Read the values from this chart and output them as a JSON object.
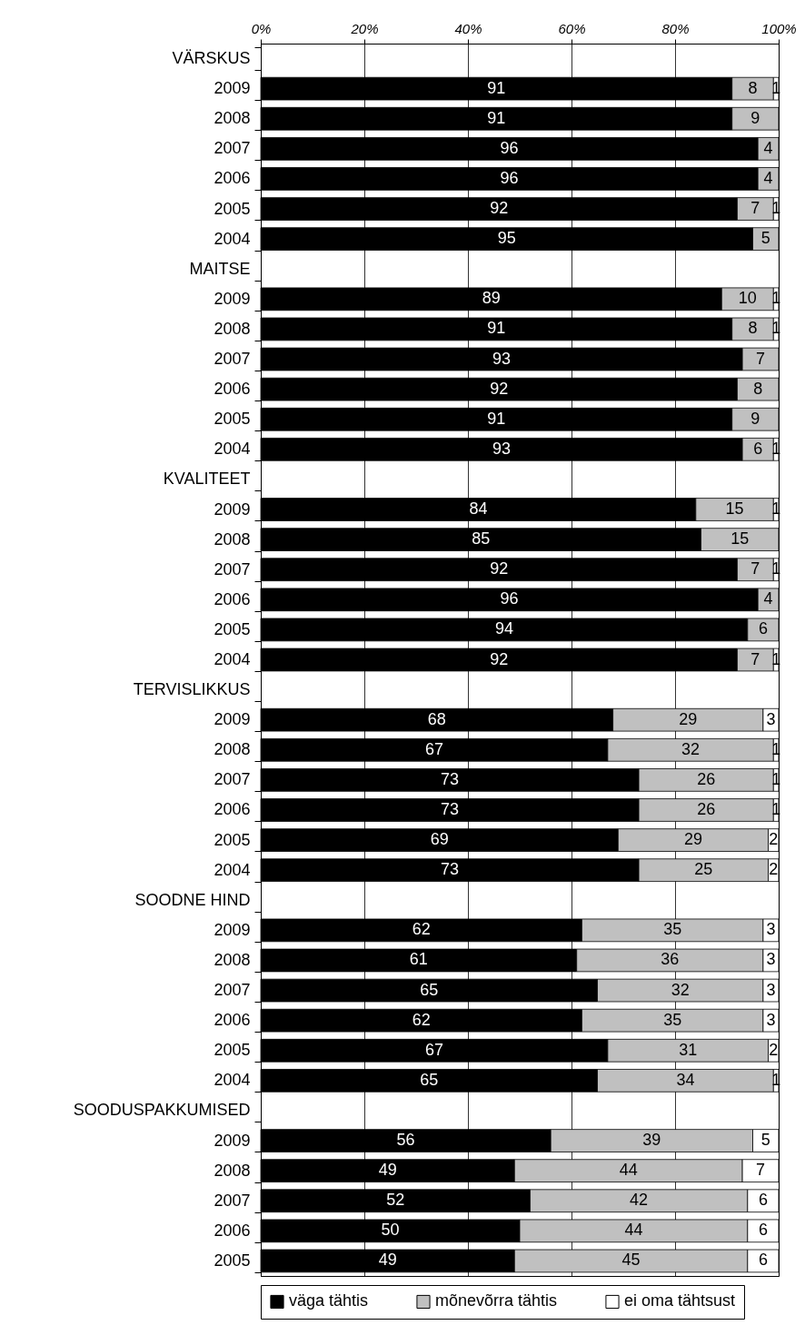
{
  "chart_data": {
    "type": "bar",
    "orientation": "horizontal",
    "stacked": true,
    "categories": [
      "VÄRSKUS",
      "2009",
      "2008",
      "2007",
      "2006",
      "2005",
      "2004",
      "MAITSE",
      "2009",
      "2008",
      "2007",
      "2006",
      "2005",
      "2004",
      "KVALITEET",
      "2009",
      "2008",
      "2007",
      "2006",
      "2005",
      "2004",
      "TERVISLIKKUS",
      "2009",
      "2008",
      "2007",
      "2006",
      "2005",
      "2004",
      "SOODNE HIND",
      "2009",
      "2008",
      "2007",
      "2006",
      "2005",
      "2004",
      "SOODUSPAKKUMISED",
      "2009",
      "2008",
      "2007",
      "2006",
      "2005"
    ],
    "series": [
      {
        "name": "väga tähtis",
        "color": "#000000",
        "values": [
          null,
          91,
          91,
          96,
          96,
          92,
          95,
          null,
          89,
          91,
          93,
          92,
          91,
          93,
          null,
          84,
          85,
          92,
          96,
          94,
          92,
          null,
          68,
          67,
          73,
          73,
          69,
          73,
          null,
          62,
          61,
          65,
          62,
          67,
          65,
          null,
          56,
          49,
          52,
          50,
          49
        ]
      },
      {
        "name": "mõnevõrra tähtis",
        "color": "#c0c0c0",
        "values": [
          null,
          8,
          9,
          4,
          4,
          7,
          5,
          null,
          10,
          8,
          7,
          8,
          9,
          6,
          null,
          15,
          15,
          7,
          4,
          6,
          7,
          null,
          29,
          32,
          26,
          26,
          29,
          25,
          null,
          35,
          36,
          32,
          35,
          31,
          34,
          null,
          39,
          44,
          42,
          44,
          45
        ]
      },
      {
        "name": "ei oma tähtsust",
        "color": "#ffffff",
        "values": [
          null,
          1,
          null,
          null,
          null,
          1,
          null,
          null,
          1,
          1,
          null,
          null,
          null,
          1,
          null,
          1,
          null,
          1,
          null,
          null,
          1,
          null,
          3,
          1,
          1,
          1,
          2,
          2,
          null,
          3,
          3,
          3,
          3,
          2,
          1,
          null,
          5,
          7,
          6,
          6,
          6
        ]
      }
    ],
    "xlim": [
      0,
      100
    ],
    "xticks": [
      {
        "value": 0,
        "label": "0%"
      },
      {
        "value": 20,
        "label": "20%"
      },
      {
        "value": 40,
        "label": "40%"
      },
      {
        "value": 60,
        "label": "60%"
      },
      {
        "value": 80,
        "label": "80%"
      },
      {
        "value": 100,
        "label": "100%"
      }
    ],
    "grid": "x",
    "legend": "bottom",
    "data_labels": true
  }
}
